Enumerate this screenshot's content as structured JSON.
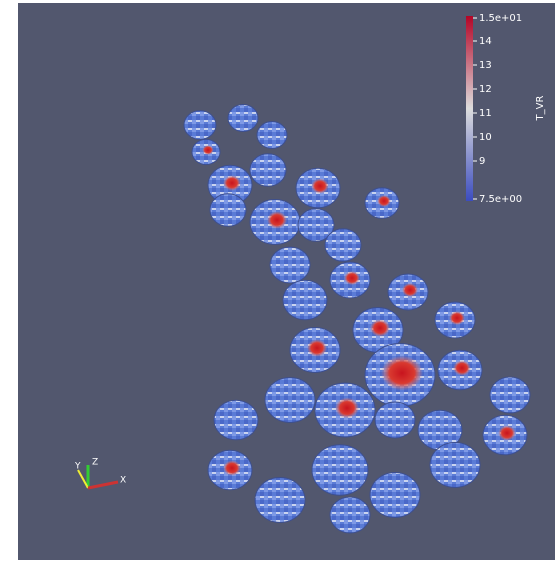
{
  "colorbar": {
    "title": "T_VR",
    "labels": [
      "1.5e+01",
      "14",
      "13",
      "12",
      "11",
      "10",
      "9",
      "7.5e+00"
    ]
  },
  "orientation_axes": {
    "x": "X",
    "y": "Y",
    "z": "Z"
  }
}
